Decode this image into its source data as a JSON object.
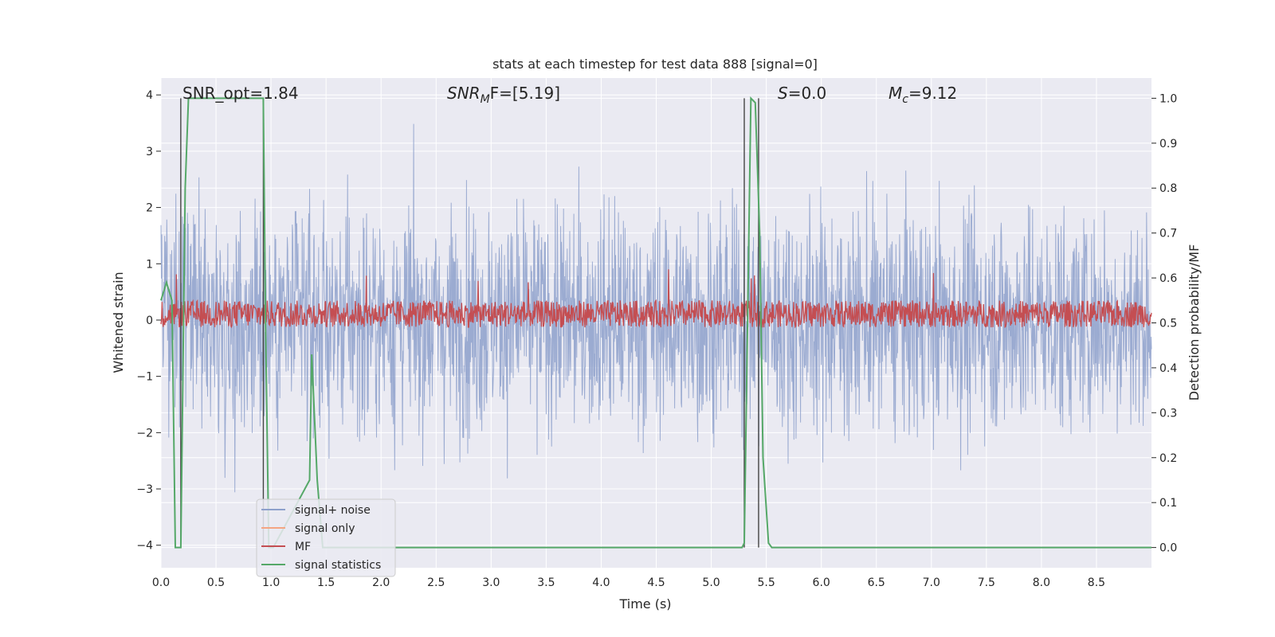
{
  "chart_data": {
    "type": "line",
    "title": "stats at each timestep for test data 888 [signal=0]",
    "xlabel": "Time (s)",
    "ylabel": "Whitened strain",
    "y2label": "Detection probability/MF",
    "xlim": [
      0.0,
      9.0
    ],
    "ylim": [
      -4.4,
      4.3
    ],
    "y2lim": [
      -0.045,
      1.045
    ],
    "xticks": [
      "0.0",
      "0.5",
      "1.0",
      "1.5",
      "2.0",
      "2.5",
      "3.0",
      "3.5",
      "4.0",
      "4.5",
      "5.0",
      "5.5",
      "6.0",
      "6.5",
      "7.0",
      "7.5",
      "8.0",
      "8.5"
    ],
    "yticks": [
      "4",
      "3",
      "2",
      "1",
      "0",
      "−1",
      "−2",
      "−3",
      "−4"
    ],
    "y2ticks": [
      "1.0",
      "0.9",
      "0.8",
      "0.7",
      "0.6",
      "0.5",
      "0.4",
      "0.3",
      "0.2",
      "0.1",
      "0.0"
    ],
    "grid": true,
    "legend_position": "lower-left",
    "annotations": [
      {
        "text": "SNR_opt=1.84",
        "style": "normal"
      },
      {
        "text": "SNR",
        "sub": "M",
        "rest": "F=[5.19]",
        "style": "italic"
      },
      {
        "text": "S",
        "rest": "=0.0",
        "style": "italic"
      },
      {
        "text": "M",
        "sub": "c",
        "rest": "=9.12",
        "style": "italic"
      }
    ],
    "series": [
      {
        "name": "signal+ noise",
        "color": "#8da0cb",
        "noise_amplitude_sd": 1.0,
        "peak_range": [
          -4.0,
          4.0
        ]
      },
      {
        "name": "signal only",
        "color": "#f4a582",
        "values": []
      },
      {
        "name": "MF",
        "color": "#c44e52",
        "axis": "right",
        "baseline": 0.52,
        "peak_range": [
          0.5,
          0.62
        ]
      },
      {
        "name": "signal statistics",
        "color": "#55a868",
        "axis": "right",
        "x": [
          0.0,
          0.05,
          0.1,
          0.13,
          0.18,
          0.22,
          0.25,
          0.93,
          0.95,
          0.98,
          1.02,
          1.35,
          1.37,
          1.42,
          1.47,
          1.5,
          5.28,
          5.3,
          5.33,
          5.36,
          5.4,
          5.44,
          5.47,
          5.52,
          5.55,
          9.0
        ],
        "y": [
          0.55,
          0.59,
          0.55,
          0.0,
          0.0,
          0.8,
          1.0,
          1.0,
          0.5,
          0.0,
          0.0,
          0.15,
          0.43,
          0.15,
          0.0,
          0.0,
          0.0,
          0.01,
          0.5,
          1.0,
          0.99,
          0.7,
          0.2,
          0.01,
          0.0,
          0.0
        ]
      }
    ],
    "vertical_markers": [
      {
        "x": 0.18,
        "y_top": 1.0,
        "y_bottom": 0.0,
        "color": "#444444"
      },
      {
        "x": 0.93,
        "y_top": 1.0,
        "y_bottom": 0.0,
        "color": "#444444"
      },
      {
        "x": 5.3,
        "y_top": 1.0,
        "y_bottom": 0.0,
        "color": "#444444"
      },
      {
        "x": 5.43,
        "y_top": 1.0,
        "y_bottom": 0.0,
        "color": "#444444"
      }
    ]
  },
  "colors": {
    "plot_background": "#eaeaf2",
    "grid": "#ffffff",
    "text": "#262626"
  }
}
